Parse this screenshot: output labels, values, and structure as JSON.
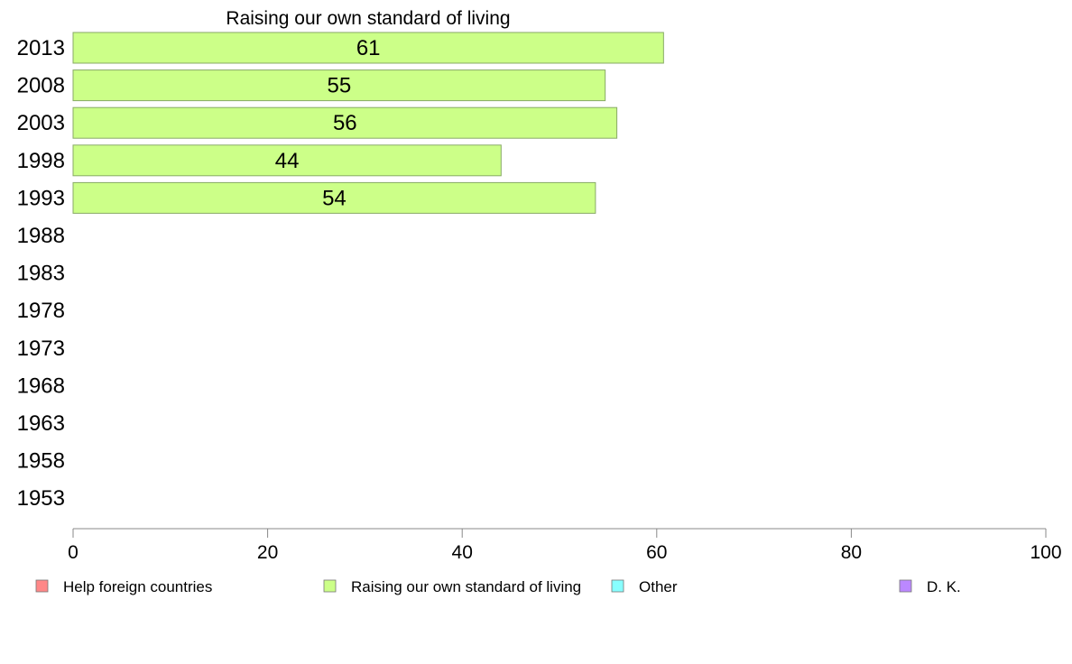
{
  "chart_data": {
    "type": "bar",
    "orientation": "horizontal",
    "title": "Raising our own standard of living",
    "xlabel": "",
    "ylabel": "",
    "categories": [
      "2013",
      "2008",
      "2003",
      "1998",
      "1993",
      "1988",
      "1983",
      "1978",
      "1973",
      "1968",
      "1963",
      "1958",
      "1953"
    ],
    "series": [
      {
        "name": "Raising our own standard of living",
        "color": "#ccff88",
        "values": [
          60.7,
          54.7,
          55.9,
          44.0,
          53.7,
          null,
          null,
          null,
          null,
          null,
          null,
          null,
          null
        ],
        "labels": [
          "61",
          "55",
          "56",
          "44",
          "54",
          "",
          "",
          "",
          "",
          "",
          "",
          "",
          ""
        ]
      }
    ],
    "xlim": [
      0,
      100
    ],
    "xticks": [
      "0",
      "20",
      "40",
      "60",
      "80",
      "100"
    ],
    "grid": false,
    "legend": {
      "placement": "bottom",
      "entries": [
        {
          "label": "Help foreign countries",
          "color": "#ff8888"
        },
        {
          "label": "Raising our own standard of living",
          "color": "#ccff88"
        },
        {
          "label": "Other",
          "color": "#88ffff"
        },
        {
          "label": "D. K.",
          "color": "#bb88ff"
        }
      ]
    }
  }
}
